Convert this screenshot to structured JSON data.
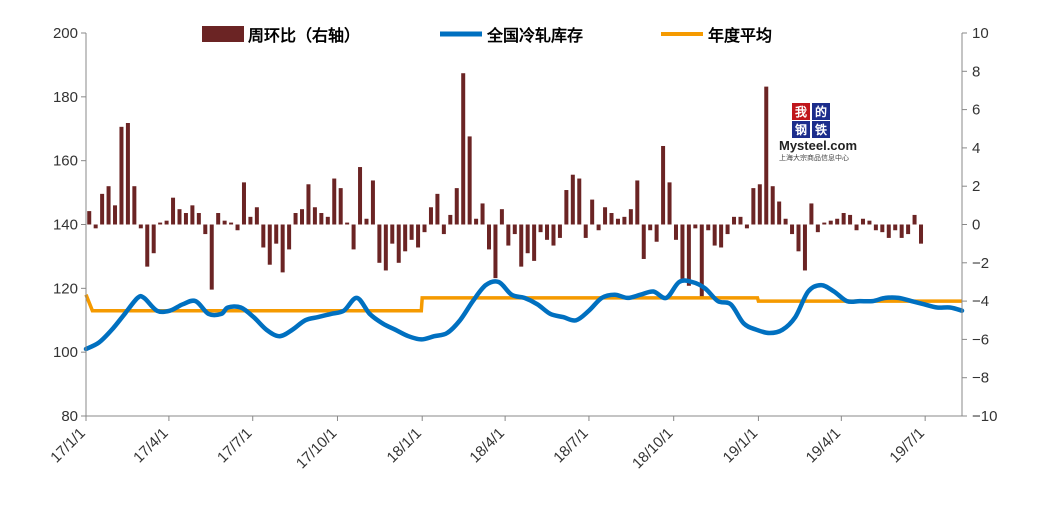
{
  "chart_data": {
    "type": "bar+line",
    "title": "",
    "colors": {
      "bar": "#6b2424",
      "line_inventory": "#0070c0",
      "line_average": "#f59a00",
      "right_axis_negative": "#ff0000"
    },
    "legend": {
      "placement": "top",
      "items": [
        {
          "label": "周环比（右轴）",
          "kind": "bar",
          "color": "#6b2424"
        },
        {
          "label": "全国冷轧库存",
          "kind": "line",
          "color": "#0070c0"
        },
        {
          "label": "年度平均",
          "kind": "line",
          "color": "#f59a00"
        }
      ]
    },
    "left_axis": {
      "min": 80,
      "max": 200,
      "ticks": [
        "200",
        "180",
        "160",
        "140",
        "120",
        "100",
        "80"
      ]
    },
    "right_axis": {
      "min": -10,
      "max": 10,
      "ticks": [
        "10",
        "8",
        "6",
        "4",
        "2",
        "0",
        "−2",
        "−4",
        "−6",
        "−8",
        "−10"
      ]
    },
    "x_axis": {
      "start": "2017-01-01",
      "end": "2019-08-10",
      "labels": [
        {
          "date": "2017-01-01",
          "text": "17/1/1"
        },
        {
          "date": "2017-04-01",
          "text": "17/4/1"
        },
        {
          "date": "2017-07-01",
          "text": "17/7/1"
        },
        {
          "date": "2017-10-01",
          "text": "17/10/1"
        },
        {
          "date": "2018-01-01",
          "text": "18/1/1"
        },
        {
          "date": "2018-04-01",
          "text": "18/4/1"
        },
        {
          "date": "2018-07-01",
          "text": "18/7/1"
        },
        {
          "date": "2018-10-01",
          "text": "18/10/1"
        },
        {
          "date": "2019-01-01",
          "text": "19/1/1"
        },
        {
          "date": "2019-04-01",
          "text": "19/4/1"
        },
        {
          "date": "2019-07-01",
          "text": "19/7/1"
        }
      ]
    },
    "series": [
      {
        "name": "全国冷轧库存",
        "axis": "left",
        "points": [
          [
            "2017-01-01",
            101
          ],
          [
            "2017-01-15",
            103
          ],
          [
            "2017-01-29",
            107
          ],
          [
            "2017-02-12",
            112
          ],
          [
            "2017-02-26",
            117
          ],
          [
            "2017-03-05",
            117
          ],
          [
            "2017-03-19",
            113
          ],
          [
            "2017-04-02",
            113
          ],
          [
            "2017-04-16",
            115
          ],
          [
            "2017-04-30",
            116
          ],
          [
            "2017-05-14",
            112
          ],
          [
            "2017-05-28",
            112
          ],
          [
            "2017-06-04",
            114
          ],
          [
            "2017-06-18",
            114
          ],
          [
            "2017-07-02",
            111
          ],
          [
            "2017-07-16",
            107
          ],
          [
            "2017-07-30",
            105
          ],
          [
            "2017-08-13",
            107
          ],
          [
            "2017-08-27",
            110
          ],
          [
            "2017-09-10",
            111
          ],
          [
            "2017-09-24",
            112
          ],
          [
            "2017-10-08",
            113
          ],
          [
            "2017-10-22",
            117
          ],
          [
            "2017-11-05",
            112
          ],
          [
            "2017-11-19",
            109
          ],
          [
            "2017-12-03",
            107
          ],
          [
            "2017-12-17",
            105
          ],
          [
            "2017-12-31",
            104
          ],
          [
            "2018-01-14",
            105
          ],
          [
            "2018-01-28",
            106
          ],
          [
            "2018-02-11",
            110
          ],
          [
            "2018-02-25",
            116
          ],
          [
            "2018-03-11",
            121
          ],
          [
            "2018-03-25",
            122
          ],
          [
            "2018-04-08",
            118
          ],
          [
            "2018-04-22",
            117
          ],
          [
            "2018-05-06",
            115
          ],
          [
            "2018-05-20",
            112
          ],
          [
            "2018-06-03",
            111
          ],
          [
            "2018-06-17",
            110
          ],
          [
            "2018-07-01",
            113
          ],
          [
            "2018-07-15",
            117
          ],
          [
            "2018-07-29",
            118
          ],
          [
            "2018-08-12",
            117
          ],
          [
            "2018-08-26",
            118
          ],
          [
            "2018-09-09",
            119
          ],
          [
            "2018-09-23",
            117
          ],
          [
            "2018-10-07",
            122
          ],
          [
            "2018-10-21",
            122
          ],
          [
            "2018-11-04",
            120
          ],
          [
            "2018-11-18",
            116
          ],
          [
            "2018-12-02",
            115
          ],
          [
            "2018-12-16",
            109
          ],
          [
            "2018-12-30",
            107
          ],
          [
            "2019-01-13",
            106
          ],
          [
            "2019-01-27",
            107
          ],
          [
            "2019-02-10",
            111
          ],
          [
            "2019-02-24",
            119
          ],
          [
            "2019-03-10",
            121
          ],
          [
            "2019-03-24",
            119
          ],
          [
            "2019-04-07",
            116
          ],
          [
            "2019-04-21",
            116
          ],
          [
            "2019-05-05",
            116
          ],
          [
            "2019-05-19",
            117
          ],
          [
            "2019-06-02",
            117
          ],
          [
            "2019-06-16",
            116
          ],
          [
            "2019-06-30",
            115
          ],
          [
            "2019-07-14",
            114
          ],
          [
            "2019-07-28",
            114
          ],
          [
            "2019-08-10",
            113
          ]
        ]
      },
      {
        "name": "年度平均",
        "axis": "left",
        "points": [
          [
            "2017-01-01",
            118
          ],
          [
            "2017-01-08",
            113
          ],
          [
            "2017-12-31",
            113
          ],
          [
            "2018-01-01",
            117
          ],
          [
            "2018-12-31",
            117
          ],
          [
            "2019-01-01",
            116
          ],
          [
            "2019-08-10",
            116
          ]
        ]
      },
      {
        "name": "周环比（右轴）",
        "axis": "right",
        "values": [
          0.7,
          -0.2,
          1.6,
          2.0,
          1.0,
          5.1,
          5.3,
          2.0,
          -0.2,
          -2.2,
          -1.5,
          0.1,
          0.2,
          1.4,
          0.8,
          0.6,
          1.0,
          0.6,
          -0.5,
          -3.4,
          0.6,
          0.2,
          0.1,
          -0.3,
          2.2,
          0.4,
          0.9,
          -1.2,
          -2.1,
          -1.0,
          -2.5,
          -1.3,
          0.6,
          0.8,
          2.1,
          0.9,
          0.6,
          0.4,
          2.4,
          1.9,
          0.1,
          -1.3,
          3.0,
          0.3,
          2.3,
          -2.0,
          -2.4,
          -1.0,
          -2.0,
          -1.4,
          -0.8,
          -1.2,
          -0.4,
          0.9,
          1.6,
          -0.5,
          0.5,
          1.9,
          7.9,
          4.6,
          0.3,
          1.1,
          -1.3,
          -2.8,
          0.8,
          -1.1,
          -0.5,
          -2.2,
          -1.5,
          -1.9,
          -0.4,
          -0.8,
          -1.1,
          -0.7,
          1.8,
          2.6,
          2.4,
          -0.7,
          1.3,
          -0.3,
          0.9,
          0.6,
          0.3,
          0.4,
          0.8,
          2.3,
          -1.8,
          -0.3,
          -0.9,
          4.1,
          2.2,
          -0.8,
          -2.9,
          -3.2,
          -0.2,
          -3.8,
          -0.3,
          -1.1,
          -1.2,
          -0.5,
          0.4,
          0.4,
          -0.2,
          1.9,
          2.1,
          7.2,
          2.0,
          1.2,
          0.3,
          -0.5,
          -1.4,
          -2.4,
          1.1,
          -0.4,
          0.1,
          0.2,
          0.3,
          0.6,
          0.5,
          -0.3,
          0.3,
          0.2,
          -0.3,
          -0.4,
          -0.7,
          -0.3,
          -0.7,
          -0.5,
          0.5,
          -1.0
        ]
      }
    ]
  },
  "watermark": {
    "main": "Mysteel.com",
    "sub": "上海大宗商品信息中心",
    "cn": [
      "我",
      "的",
      "钢",
      "铁"
    ]
  }
}
